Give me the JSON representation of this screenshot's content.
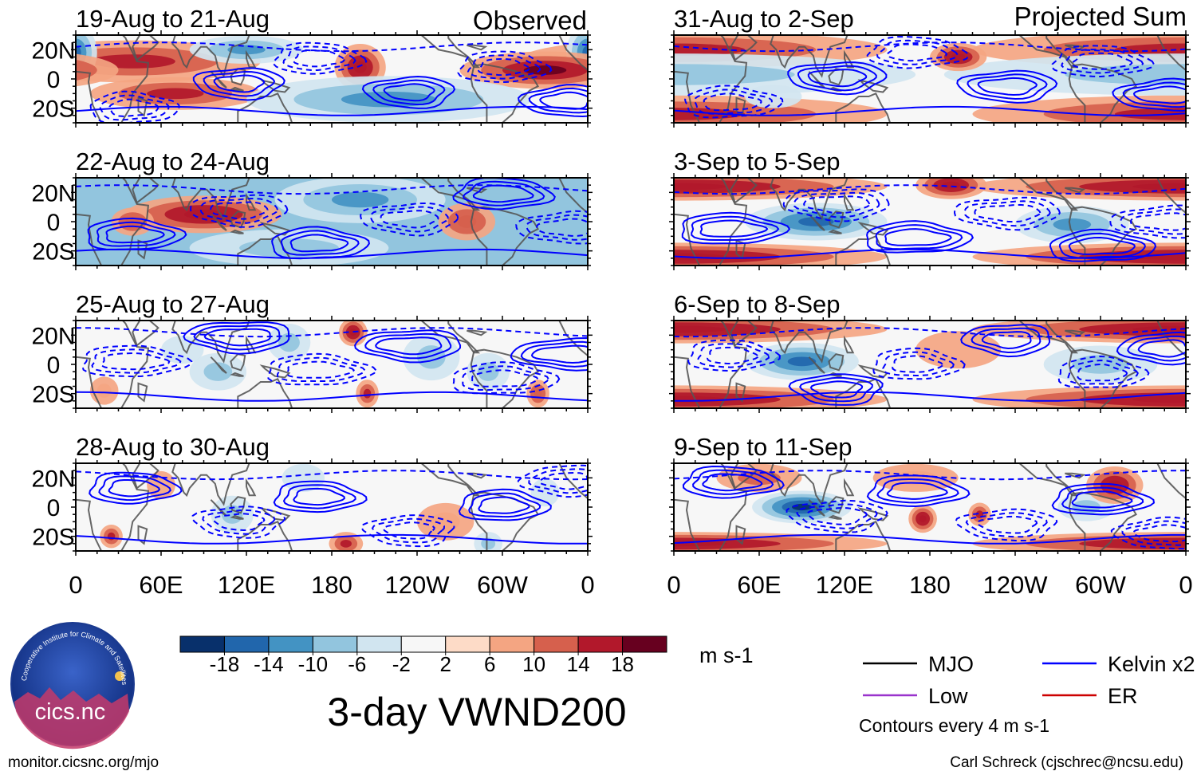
{
  "figure": {
    "title": "3-day VWND200",
    "units": "m s-1",
    "contour_note": "Contours every 4 m s-1",
    "left_credit": "monitor.cicsnc.org/mjo",
    "right_credit": "Carl Schreck (cjschrec@ncsu.edu)",
    "observed_label": "Observed",
    "projected_label": "Projected Sum"
  },
  "logo": {
    "text": "cics.nc",
    "ring_text": "Cooperative Institute for Climate and Satellites"
  },
  "colors": {
    "colorbar": [
      "#08306b",
      "#2166ac",
      "#4393c3",
      "#92c5de",
      "#d1e5f0",
      "#f7f7f7",
      "#fddbc7",
      "#f4a582",
      "#d6604d",
      "#b2182b",
      "#67001f"
    ],
    "contour_blue": "#0000ff",
    "land": "#555555"
  },
  "legend": [
    {
      "label": "MJO",
      "color": "#000000"
    },
    {
      "label": "Kelvin x2",
      "color": "#0000ff"
    },
    {
      "label": "Low",
      "color": "#9933cc"
    },
    {
      "label": "ER",
      "color": "#cc0000"
    }
  ],
  "chart_data": {
    "type": "heatmap",
    "variable": "200-hPa meridional wind anomaly (VWND200)",
    "colorbar_ticks": [
      "-18",
      "-14",
      "-10",
      "-6",
      "-2",
      "2",
      "6",
      "10",
      "14",
      "18"
    ],
    "x_tick_labels": [
      "0",
      "60E",
      "120E",
      "180",
      "120W",
      "60W",
      "0"
    ],
    "x_ticks_deg": [
      0,
      60,
      120,
      180,
      240,
      300,
      360
    ],
    "y_tick_labels": [
      "20N",
      "0",
      "20S"
    ],
    "y_ticks_deg": [
      20,
      0,
      -20
    ],
    "ylim": [
      -30,
      30
    ],
    "xlim": [
      0,
      360
    ],
    "panels": [
      {
        "title": "19-Aug to 21-Aug",
        "column": "Observed",
        "tint": 0,
        "features": [
          [
            40,
            12,
            9,
            90,
            14,
            14
          ],
          [
            360,
            18,
            12,
            15,
            25,
            -16
          ],
          [
            330,
            6,
            8,
            60,
            10,
            18
          ],
          [
            200,
            8,
            10,
            18,
            8,
            16
          ],
          [
            70,
            -10,
            7,
            60,
            8,
            14
          ],
          [
            220,
            -14,
            10,
            100,
            10,
            -14
          ],
          [
            120,
            20,
            6,
            40,
            6,
            -12
          ]
        ]
      },
      {
        "title": "22-Aug to 24-Aug",
        "column": "Observed",
        "tint": -8,
        "features": [
          [
            90,
            5,
            8,
            55,
            8,
            16
          ],
          [
            275,
            0,
            8,
            20,
            10,
            12
          ],
          [
            40,
            0,
            6,
            15,
            5,
            12
          ],
          [
            200,
            15,
            10,
            60,
            10,
            -12
          ],
          [
            150,
            -18,
            8,
            70,
            8,
            -10
          ]
        ]
      },
      {
        "title": "25-Aug to 27-Aug",
        "column": "Observed",
        "tint": 0,
        "features": [
          [
            195,
            22,
            6,
            10,
            6,
            16
          ],
          [
            100,
            -5,
            8,
            20,
            6,
            -10
          ],
          [
            250,
            5,
            10,
            20,
            6,
            -8
          ],
          [
            290,
            -5,
            8,
            15,
            6,
            -9
          ],
          [
            150,
            15,
            8,
            15,
            6,
            -8
          ],
          [
            20,
            -18,
            6,
            10,
            6,
            8
          ],
          [
            205,
            -20,
            6,
            8,
            5,
            14
          ],
          [
            325,
            -20,
            6,
            8,
            4,
            12
          ],
          [
            75,
            10,
            6,
            15,
            5,
            -6
          ]
        ]
      },
      {
        "title": "28-Aug to 30-Aug",
        "column": "Observed",
        "tint": 0,
        "features": [
          [
            110,
            -5,
            8,
            15,
            5,
            -9
          ],
          [
            260,
            -10,
            8,
            20,
            6,
            8
          ],
          [
            190,
            -25,
            5,
            12,
            4,
            14
          ],
          [
            25,
            -20,
            5,
            8,
            4,
            14
          ],
          [
            290,
            -25,
            5,
            10,
            4,
            -10
          ],
          [
            160,
            20,
            6,
            15,
            5,
            -6
          ],
          [
            330,
            10,
            6,
            10,
            5,
            -7
          ],
          [
            60,
            15,
            6,
            10,
            5,
            6
          ]
        ]
      },
      {
        "title": "31-Aug to 2-Sep",
        "column": "Projected Sum",
        "tint": 0,
        "features": [
          [
            0,
            20,
            8,
            150,
            40,
            14
          ],
          [
            0,
            -24,
            8,
            150,
            40,
            14
          ],
          [
            0,
            3,
            9,
            170,
            40,
            -10
          ],
          [
            200,
            15,
            6,
            20,
            8,
            16
          ],
          [
            70,
            -12,
            5,
            20,
            5,
            -6
          ]
        ]
      },
      {
        "title": "3-Sep to 5-Sep",
        "column": "Projected Sum",
        "tint": 0,
        "features": [
          [
            0,
            24,
            6,
            150,
            40,
            16
          ],
          [
            0,
            -24,
            6,
            150,
            40,
            16
          ],
          [
            100,
            0,
            8,
            50,
            10,
            -16
          ],
          [
            280,
            -2,
            8,
            40,
            10,
            -14
          ],
          [
            195,
            25,
            6,
            25,
            5,
            16
          ]
        ]
      },
      {
        "title": "6-Sep to 8-Sep",
        "column": "Projected Sum",
        "tint": 0,
        "features": [
          [
            0,
            24,
            6,
            150,
            40,
            16
          ],
          [
            0,
            -24,
            6,
            150,
            40,
            16
          ],
          [
            90,
            2,
            8,
            40,
            10,
            -18
          ],
          [
            300,
            0,
            8,
            40,
            10,
            -8
          ],
          [
            200,
            10,
            8,
            30,
            8,
            6
          ]
        ]
      },
      {
        "title": "9-Sep to 11-Sep",
        "column": "Projected Sum",
        "tint": 0,
        "features": [
          [
            0,
            -25,
            5,
            150,
            40,
            16
          ],
          [
            90,
            0,
            7,
            35,
            8,
            -20
          ],
          [
            175,
            -8,
            6,
            10,
            6,
            16
          ],
          [
            215,
            -5,
            5,
            8,
            5,
            14
          ],
          [
            290,
            0,
            6,
            20,
            6,
            -10
          ],
          [
            310,
            15,
            8,
            20,
            8,
            16
          ],
          [
            60,
            20,
            6,
            30,
            8,
            10
          ],
          [
            170,
            20,
            6,
            30,
            8,
            8
          ]
        ]
      }
    ]
  }
}
